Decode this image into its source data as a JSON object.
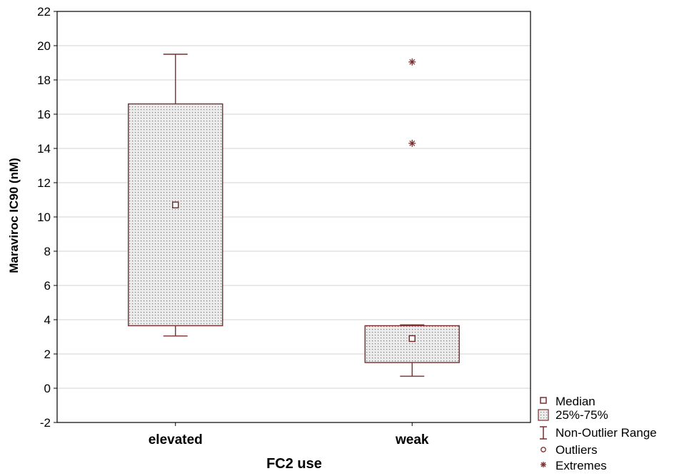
{
  "chart_data": {
    "type": "boxplot",
    "xlabel": "FC2 use",
    "ylabel": "Maraviroc IC90 (nM)",
    "ylim": [
      -2,
      22
    ],
    "yticks": [
      -2,
      0,
      2,
      4,
      6,
      8,
      10,
      12,
      14,
      16,
      18,
      20,
      22
    ],
    "grid": true,
    "categories": [
      "elevated",
      "weak"
    ],
    "boxes": [
      {
        "category": "elevated",
        "median": 10.7,
        "q1": 3.65,
        "q3": 16.6,
        "whisker_low": 3.05,
        "whisker_high": 19.5,
        "extremes": []
      },
      {
        "category": "weak",
        "median": 2.9,
        "q1": 1.5,
        "q3": 3.65,
        "whisker_low": 0.7,
        "whisker_high": 3.7,
        "extremes": [
          19.05,
          14.3
        ]
      }
    ],
    "legend": {
      "position": "bottom-right",
      "entries": [
        "Median",
        "25%-75%",
        "Non-Outlier Range",
        "Outliers",
        "Extremes"
      ]
    },
    "colors": {
      "marks": "#7a2e2e",
      "grid": "#d3d3d3",
      "box_fill": "#e6e6e6"
    }
  }
}
